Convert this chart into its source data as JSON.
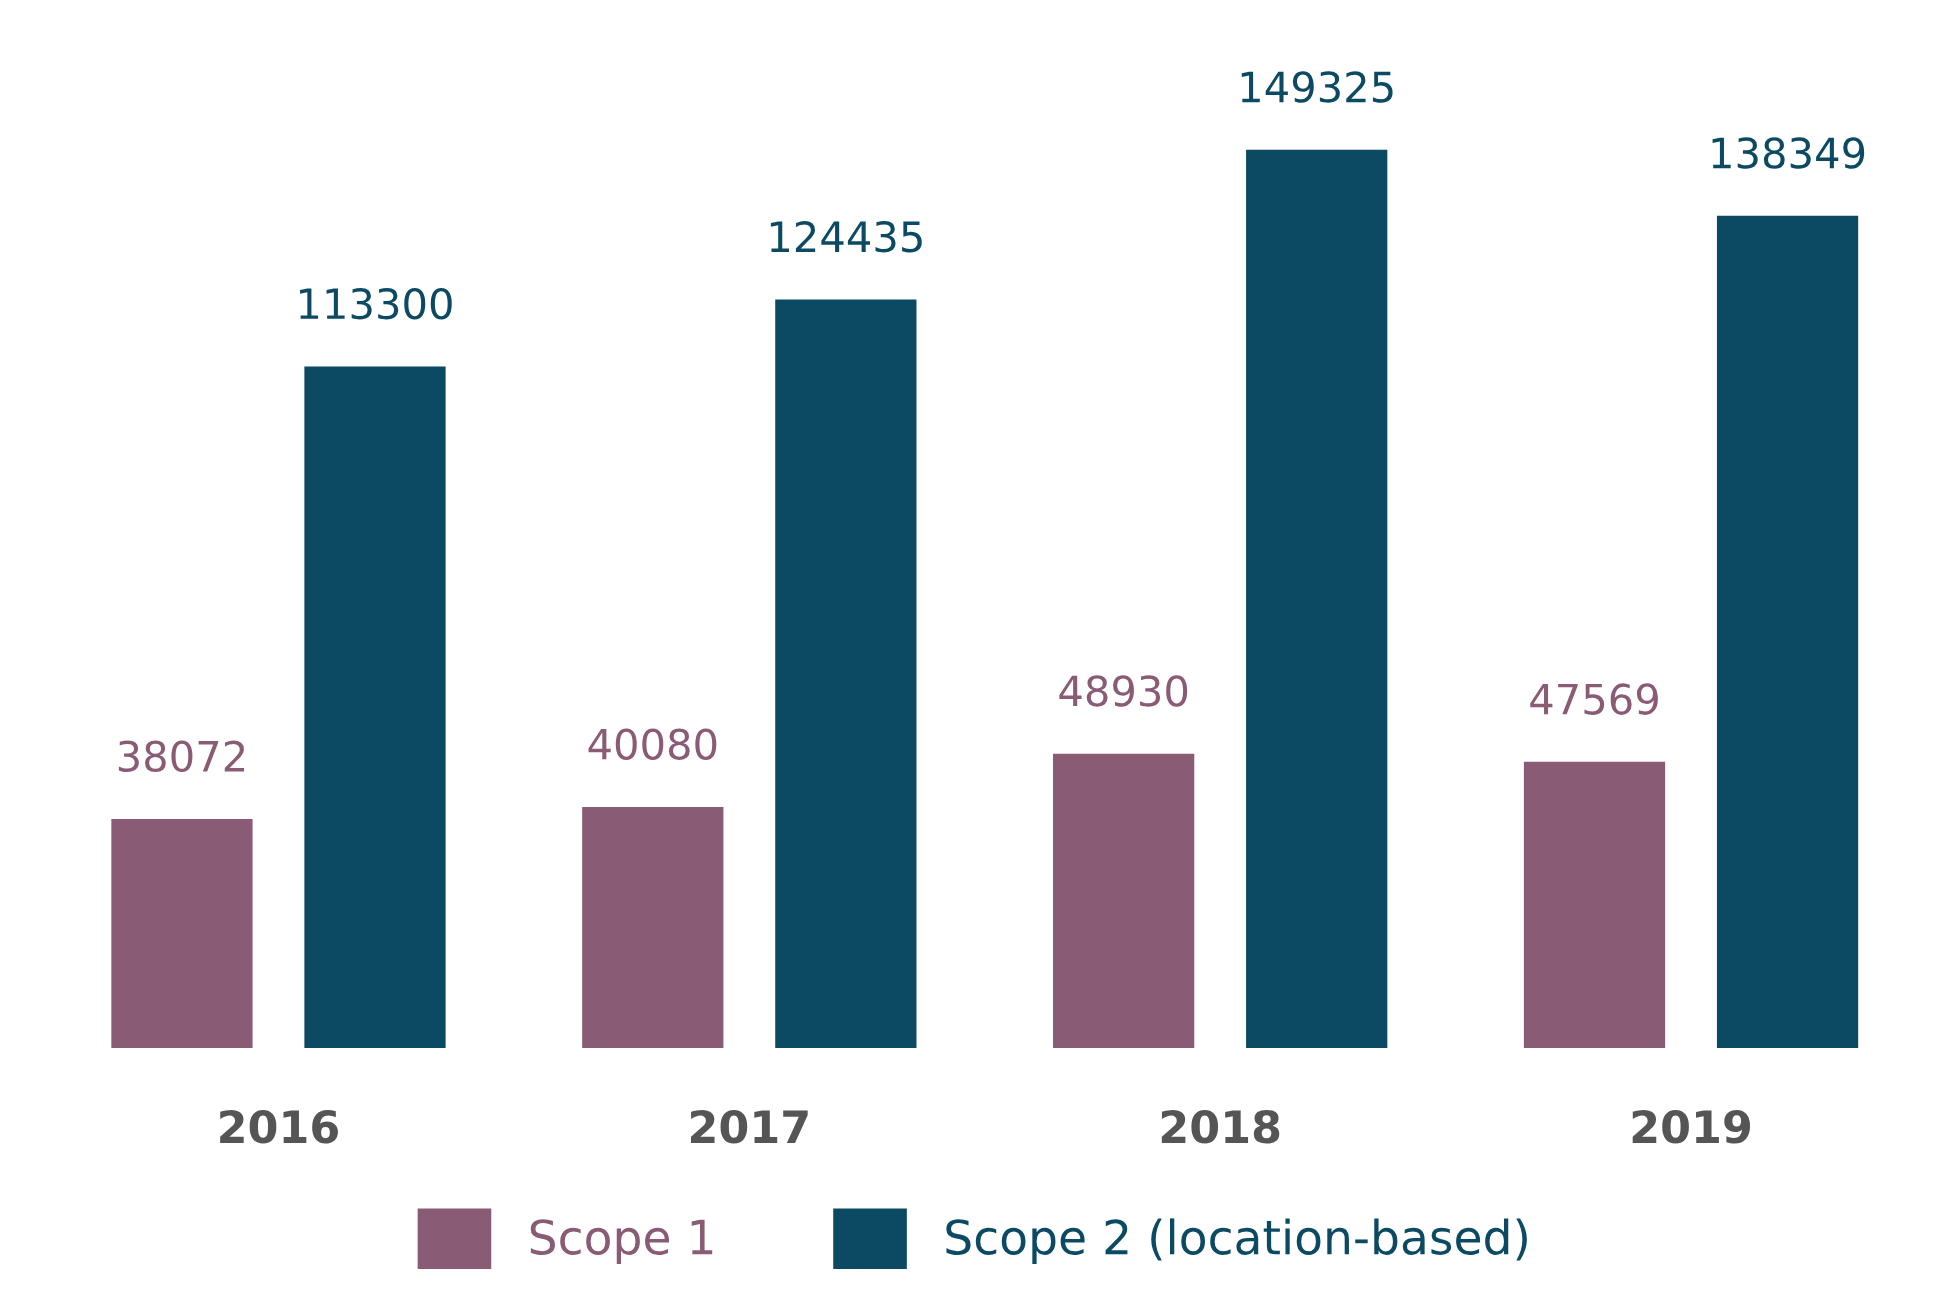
{
  "chart_data": {
    "type": "bar",
    "categories": [
      "2016",
      "2017",
      "2018",
      "2019"
    ],
    "series": [
      {
        "name": "Scope 1",
        "color": "#8a5b74",
        "values": [
          38072,
          40080,
          48930,
          47569
        ]
      },
      {
        "name": "Scope 2 (location-based)",
        "color": "#0b4a62",
        "values": [
          113300,
          124435,
          149325,
          138349
        ]
      }
    ],
    "data_labels": true,
    "legend": "bottom",
    "grid": false
  }
}
